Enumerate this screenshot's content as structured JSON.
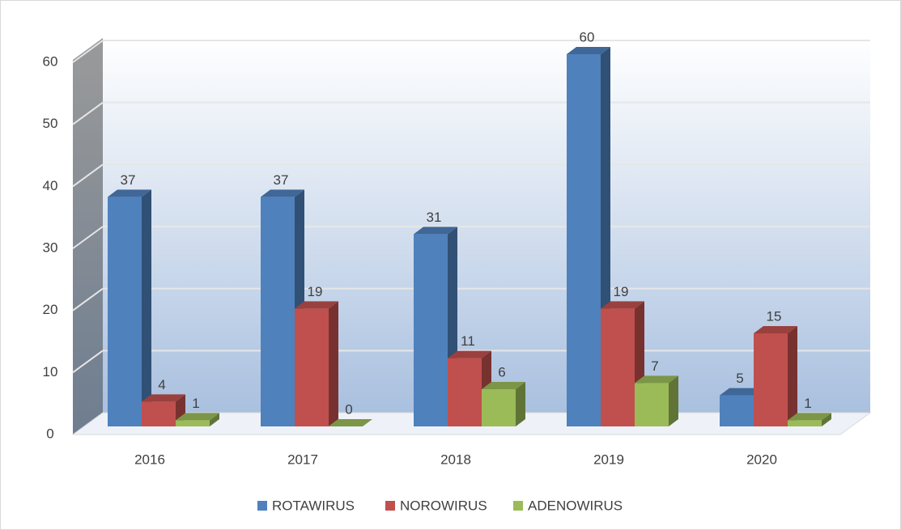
{
  "chart_data": {
    "type": "bar3d",
    "categories": [
      "2016",
      "2017",
      "2018",
      "2019",
      "2020"
    ],
    "series": [
      {
        "name": "ROTAWIRUS",
        "color": "#4f81bd",
        "values": [
          37,
          37,
          31,
          60,
          5
        ]
      },
      {
        "name": "NOROWIRUS",
        "color": "#c0504d",
        "values": [
          4,
          19,
          11,
          19,
          15
        ]
      },
      {
        "name": "ADENOWIRUS",
        "color": "#9bbb59",
        "values": [
          1,
          0,
          6,
          7,
          1
        ]
      }
    ],
    "ylim": [
      0,
      60
    ],
    "yticks": [
      0,
      10,
      20,
      30,
      40,
      50,
      60
    ],
    "grid": true,
    "legend": "bottom"
  }
}
